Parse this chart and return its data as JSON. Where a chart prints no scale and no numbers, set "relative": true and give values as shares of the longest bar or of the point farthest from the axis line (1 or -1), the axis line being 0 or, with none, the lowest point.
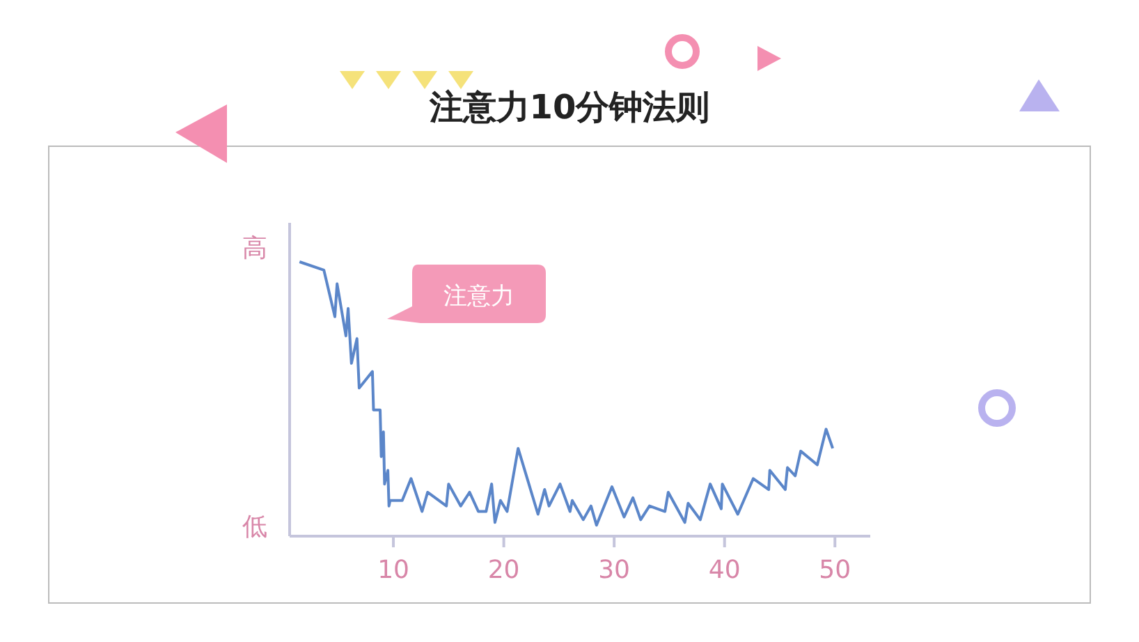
{
  "chart_data": {
    "type": "line",
    "title": "注意力10分钟法则",
    "relative": true,
    "xlim": [
      0.6,
      53.2
    ],
    "xticks": [
      10,
      20,
      30,
      40,
      50
    ],
    "annotations": [
      "高",
      "低",
      "注意力"
    ],
    "series": [
      {
        "color": "#5b86c9",
        "x": [
          1.5,
          3.7,
          4.7,
          4.9,
          5.7,
          5.9,
          6.2,
          6.7,
          6.9,
          8.1,
          8.2,
          8.8,
          8.9,
          9.1,
          9.2,
          9.5,
          9.6,
          9.7,
          10.8,
          11.6,
          12.6,
          13.1,
          14.8,
          15.0,
          16.1,
          16.9,
          17.7,
          18.4,
          18.9,
          19.2,
          19.7,
          20.3,
          21.3,
          23.1,
          23.7,
          24.1,
          25.1,
          26.0,
          26.2,
          27.2,
          27.9,
          28.4,
          29.8,
          30.9,
          31.7,
          32.4,
          33.2,
          34.6,
          34.9,
          36.4,
          36.7,
          37.8,
          38.7,
          39.7,
          39.8,
          41.2,
          42.6,
          44.0,
          44.1,
          45.5,
          45.7,
          46.4,
          46.9,
          48.4,
          49.2,
          49.8
        ],
        "values": [
          1,
          0.97,
          0.8,
          0.92,
          0.73,
          0.83,
          0.63,
          0.72,
          0.54,
          0.6,
          0.46,
          0.46,
          0.29,
          0.38,
          0.19,
          0.24,
          0.11,
          0.13,
          0.13,
          0.21,
          0.09,
          0.16,
          0.11,
          0.19,
          0.11,
          0.16,
          0.09,
          0.09,
          0.19,
          0.05,
          0.13,
          0.09,
          0.32,
          0.08,
          0.17,
          0.11,
          0.19,
          0.09,
          0.13,
          0.06,
          0.11,
          0.04,
          0.18,
          0.07,
          0.14,
          0.06,
          0.11,
          0.09,
          0.16,
          0.05,
          0.12,
          0.06,
          0.19,
          0.1,
          0.19,
          0.08,
          0.21,
          0.17,
          0.24,
          0.17,
          0.25,
          0.22,
          0.31,
          0.26,
          0.39,
          0.32
        ]
      }
    ]
  }
}
